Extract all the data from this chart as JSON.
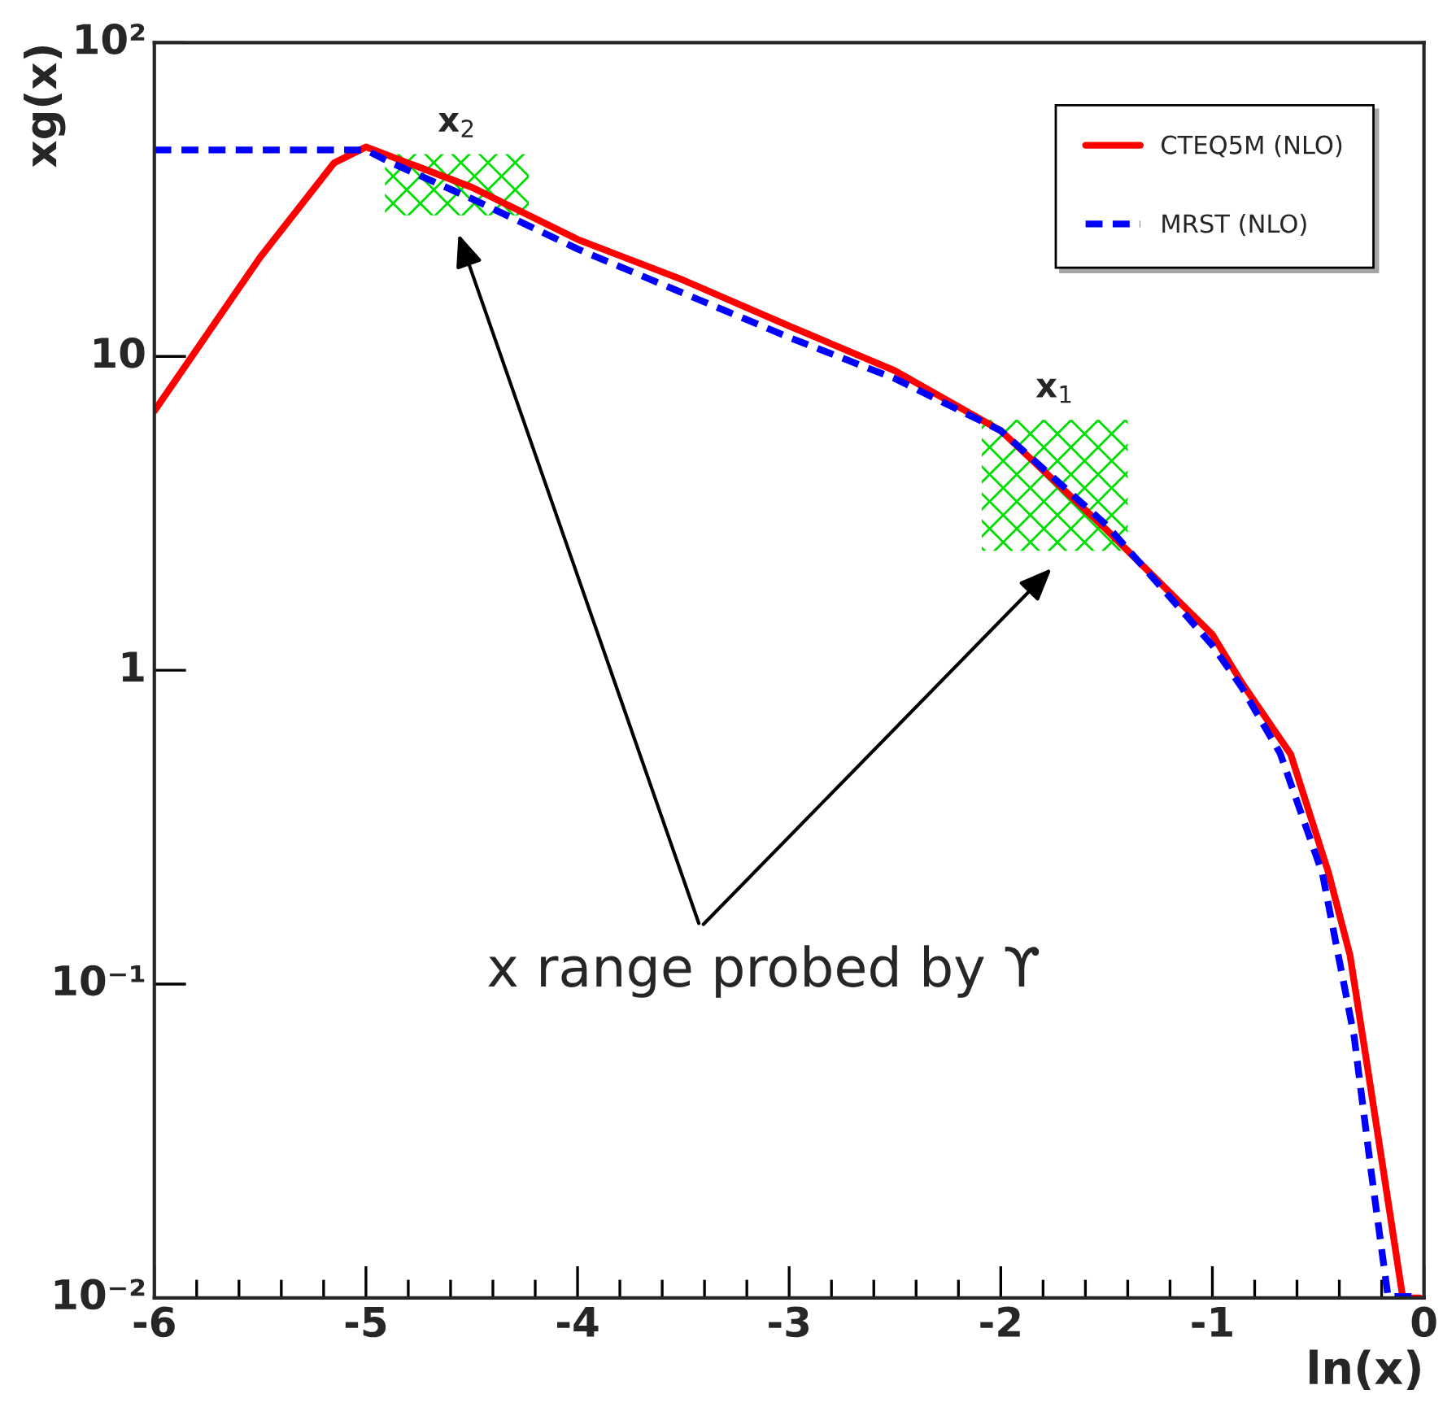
{
  "chart_data": {
    "type": "line",
    "xlabel": "ln(x)",
    "ylabel": "xg(x)",
    "series": [
      {
        "name": "CTEQ5M (NLO)",
        "color": "#ff0000",
        "line_style": "solid",
        "x": [
          -6,
          -5.5,
          -5.15,
          -5.0,
          -4.5,
          -4.0,
          -3.5,
          -3.0,
          -2.5,
          -2.0,
          -1.5,
          -1.0,
          -0.86,
          -0.63,
          -0.45,
          -0.35,
          -0.27,
          -0.19,
          -0.1,
          -0.02
        ],
        "values": [
          6.7,
          20.7,
          41.4,
          46.5,
          34.6,
          23.6,
          17.5,
          12.5,
          9.0,
          5.8,
          2.8,
          1.3,
          0.91,
          0.54,
          0.225,
          0.124,
          0.056,
          0.025,
          0.01,
          0.01
        ]
      },
      {
        "name": "MRST (NLO)",
        "color": "#0000ff",
        "line_style": "dashed",
        "x": [
          -6,
          -5.0,
          -4.9,
          -4.5,
          -4.0,
          -3.5,
          -3.0,
          -2.5,
          -2.0,
          -1.5,
          -1.0,
          -0.86,
          -0.68,
          -0.48,
          -0.33,
          -0.25,
          -0.17,
          -0.02
        ],
        "values": [
          45.5,
          45.5,
          42,
          31.8,
          22,
          15.9,
          11.5,
          8.5,
          5.8,
          2.9,
          1.2,
          0.88,
          0.544,
          0.225,
          0.068,
          0.0254,
          0.0101,
          0.0101
        ]
      }
    ],
    "bands": [
      {
        "axis": "x",
        "from": -4.91,
        "to": -4.23,
        "label": "x$_{2}$",
        "color": "#00dd00"
      },
      {
        "axis": "x",
        "from": -2.09,
        "to": -1.4,
        "label": "x$_{1}$",
        "color": "#00dd00"
      }
    ],
    "annotations": [
      "x range probed by ϒ"
    ],
    "log": "y",
    "xlim": [
      -6,
      0
    ],
    "xticks": [
      -6,
      -5,
      -4,
      -3,
      -2,
      -1,
      0
    ],
    "ylim": [
      0.01,
      100
    ],
    "yticks": [
      {
        "value": 0.01,
        "label": "10⁻²"
      },
      {
        "value": 0.1,
        "label": "10⁻¹"
      },
      1,
      10,
      {
        "value": 100,
        "label": "10²"
      }
    ],
    "grid": false,
    "legend": "top right"
  }
}
